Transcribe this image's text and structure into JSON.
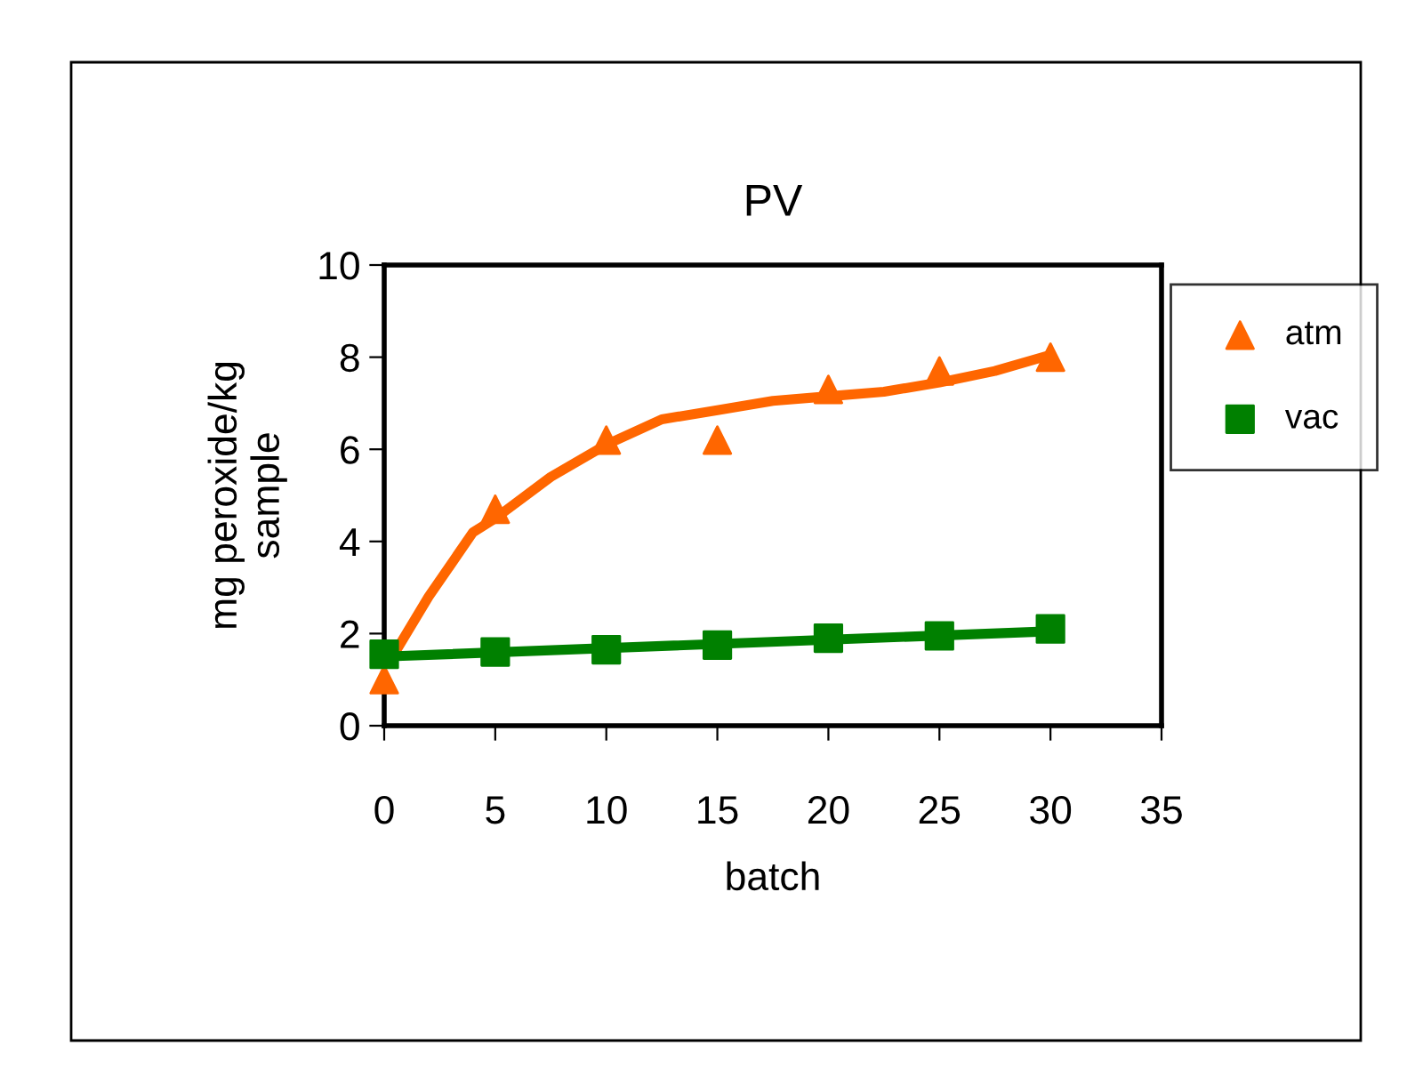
{
  "chart_data": {
    "type": "scatter",
    "title": "PV",
    "xlabel": "batch",
    "ylabel": "mg peroxide/kg\nsample",
    "xlim": [
      0,
      35
    ],
    "xticks": [
      0,
      5,
      10,
      15,
      20,
      25,
      30,
      35
    ],
    "ylim": [
      0,
      10
    ],
    "yticks": [
      0,
      2,
      4,
      6,
      8,
      10
    ],
    "x": [
      0,
      5,
      10,
      15,
      20,
      25,
      30
    ],
    "grid": false,
    "legend": "right",
    "series": [
      {
        "name": "atm",
        "color": "#ff6600",
        "marker": "triangle",
        "values": [
          1.0,
          4.7,
          6.2,
          6.2,
          7.3,
          7.7,
          8.0
        ]
      },
      {
        "name": "vac",
        "color": "#008000",
        "marker": "square",
        "values": [
          1.55,
          1.6,
          1.65,
          1.75,
          1.9,
          1.95,
          2.1
        ]
      },
      {
        "type": "line",
        "color": "#ff6600",
        "x": [
          0.5,
          2,
          4,
          5,
          7.5,
          10,
          12.5,
          15,
          17.5,
          20,
          22.5,
          25,
          27.5,
          30
        ],
        "values": [
          1.6,
          2.8,
          4.2,
          4.5,
          5.4,
          6.1,
          6.65,
          6.85,
          7.05,
          7.15,
          7.25,
          7.45,
          7.7,
          8.05
        ]
      },
      {
        "type": "line",
        "color": "#008000",
        "x": [
          0,
          30
        ],
        "values": [
          1.5,
          2.05
        ]
      }
    ]
  }
}
